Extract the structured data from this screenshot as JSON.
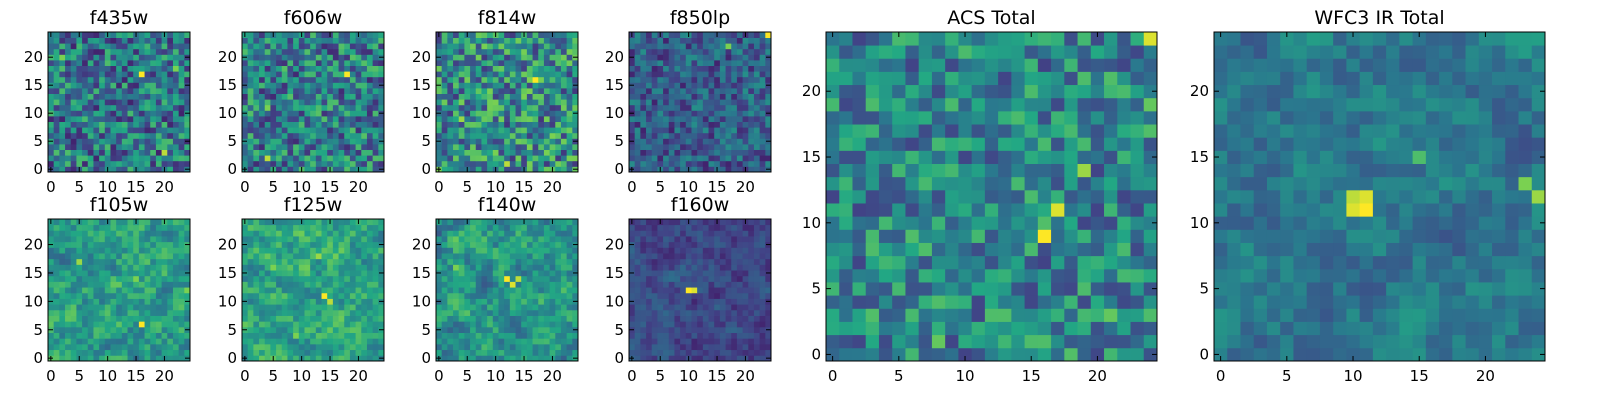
{
  "figure": {
    "colormap": "viridis",
    "colormap_stops": [
      "#440154",
      "#414487",
      "#2a788e",
      "#22a884",
      "#7ad151",
      "#fde725"
    ]
  },
  "chart_data": [
    {
      "type": "heatmap",
      "title": "f435w",
      "xlim": [
        -0.5,
        24.5
      ],
      "ylim": [
        -0.5,
        24.5
      ],
      "xticks": [
        0,
        5,
        10,
        15,
        20
      ],
      "yticks": [
        0,
        5,
        10,
        15,
        20
      ],
      "grid": false,
      "hotspots": [
        {
          "x": 16,
          "y": 17,
          "value": 1.0
        },
        {
          "x": 20,
          "y": 3,
          "value": 0.9
        },
        {
          "x": 22,
          "y": 18,
          "value": 0.8
        },
        {
          "x": 2,
          "y": 20,
          "value": 0.8
        }
      ]
    },
    {
      "type": "heatmap",
      "title": "f606w",
      "xlim": [
        -0.5,
        24.5
      ],
      "ylim": [
        -0.5,
        24.5
      ],
      "xticks": [
        0,
        5,
        10,
        15,
        20
      ],
      "yticks": [
        0,
        5,
        10,
        15,
        20
      ],
      "grid": false,
      "hotspots": [
        {
          "x": 18,
          "y": 17,
          "value": 1.0
        },
        {
          "x": 4,
          "y": 2,
          "value": 0.9
        },
        {
          "x": 4,
          "y": 11,
          "value": 0.8
        }
      ]
    },
    {
      "type": "heatmap",
      "title": "f814w",
      "xlim": [
        -0.5,
        24.5
      ],
      "ylim": [
        -0.5,
        24.5
      ],
      "xticks": [
        0,
        5,
        10,
        15,
        20
      ],
      "yticks": [
        0,
        5,
        10,
        15,
        20
      ],
      "grid": false,
      "hotspots": [
        {
          "x": 17,
          "y": 16,
          "value": 1.0
        },
        {
          "x": 12,
          "y": 1,
          "value": 0.9
        },
        {
          "x": 4,
          "y": 9,
          "value": 0.85
        },
        {
          "x": 15,
          "y": 13,
          "value": 0.8
        }
      ]
    },
    {
      "type": "heatmap",
      "title": "f850lp",
      "xlim": [
        -0.5,
        24.5
      ],
      "ylim": [
        -0.5,
        24.5
      ],
      "xticks": [
        0,
        5,
        10,
        15,
        20
      ],
      "yticks": [
        0,
        5,
        10,
        15,
        20
      ],
      "grid": false,
      "hotspots": [
        {
          "x": 24,
          "y": 24,
          "value": 1.0
        },
        {
          "x": 17,
          "y": 22,
          "value": 0.8
        }
      ]
    },
    {
      "type": "heatmap",
      "title": "f105w",
      "xlim": [
        -0.5,
        24.5
      ],
      "ylim": [
        -0.5,
        24.5
      ],
      "xticks": [
        0,
        5,
        10,
        15,
        20
      ],
      "yticks": [
        0,
        5,
        10,
        15,
        20
      ],
      "grid": false,
      "hotspots": [
        {
          "x": 16,
          "y": 6,
          "value": 1.0
        },
        {
          "x": 5,
          "y": 17,
          "value": 0.85
        },
        {
          "x": 15,
          "y": 14,
          "value": 0.8
        },
        {
          "x": 24,
          "y": 12,
          "value": 0.8
        }
      ]
    },
    {
      "type": "heatmap",
      "title": "f125w",
      "xlim": [
        -0.5,
        24.5
      ],
      "ylim": [
        -0.5,
        24.5
      ],
      "xticks": [
        0,
        5,
        10,
        15,
        20
      ],
      "yticks": [
        0,
        5,
        10,
        15,
        20
      ],
      "grid": false,
      "hotspots": [
        {
          "x": 14,
          "y": 11,
          "value": 1.0
        },
        {
          "x": 15,
          "y": 10,
          "value": 0.9
        },
        {
          "x": 13,
          "y": 18,
          "value": 0.85
        },
        {
          "x": 5,
          "y": 16,
          "value": 0.8
        },
        {
          "x": 9,
          "y": 4,
          "value": 0.8
        }
      ]
    },
    {
      "type": "heatmap",
      "title": "f140w",
      "xlim": [
        -0.5,
        24.5
      ],
      "ylim": [
        -0.5,
        24.5
      ],
      "xticks": [
        0,
        5,
        10,
        15,
        20
      ],
      "yticks": [
        0,
        5,
        10,
        15,
        20
      ],
      "grid": false,
      "hotspots": [
        {
          "x": 12,
          "y": 14,
          "value": 1.0
        },
        {
          "x": 13,
          "y": 13,
          "value": 0.95
        },
        {
          "x": 14,
          "y": 14,
          "value": 0.9
        },
        {
          "x": 3,
          "y": 16,
          "value": 0.8
        }
      ]
    },
    {
      "type": "heatmap",
      "title": "f160w",
      "xlim": [
        -0.5,
        24.5
      ],
      "ylim": [
        -0.5,
        24.5
      ],
      "xticks": [
        0,
        5,
        10,
        15,
        20
      ],
      "yticks": [
        0,
        5,
        10,
        15,
        20
      ],
      "grid": false,
      "hotspots": [
        {
          "x": 10,
          "y": 12,
          "value": 1.0
        },
        {
          "x": 11,
          "y": 12,
          "value": 0.95
        }
      ]
    },
    {
      "type": "heatmap",
      "title": "ACS Total",
      "xlim": [
        -0.5,
        24.5
      ],
      "ylim": [
        -0.5,
        24.5
      ],
      "xticks": [
        0,
        5,
        10,
        15,
        20
      ],
      "yticks": [
        0,
        5,
        10,
        15,
        20
      ],
      "grid": false,
      "hotspots": [
        {
          "x": 16,
          "y": 9,
          "value": 1.0
        },
        {
          "x": 17,
          "y": 11,
          "value": 0.95
        },
        {
          "x": 24,
          "y": 24,
          "value": 0.95
        },
        {
          "x": 19,
          "y": 14,
          "value": 0.85
        },
        {
          "x": 24,
          "y": 19,
          "value": 0.75
        },
        {
          "x": 8,
          "y": 1,
          "value": 0.75
        },
        {
          "x": 21,
          "y": 3,
          "value": 0.75
        }
      ]
    },
    {
      "type": "heatmap",
      "title": "WFC3 IR Total",
      "xlim": [
        -0.5,
        24.5
      ],
      "ylim": [
        -0.5,
        24.5
      ],
      "xticks": [
        0,
        5,
        10,
        15,
        20
      ],
      "yticks": [
        0,
        5,
        10,
        15,
        20
      ],
      "grid": false,
      "hotspots": [
        {
          "x": 11,
          "y": 11,
          "value": 1.0
        },
        {
          "x": 10,
          "y": 11,
          "value": 0.95
        },
        {
          "x": 11,
          "y": 12,
          "value": 0.95
        },
        {
          "x": 10,
          "y": 12,
          "value": 0.9
        },
        {
          "x": 24,
          "y": 12,
          "value": 0.85
        },
        {
          "x": 23,
          "y": 13,
          "value": 0.8
        },
        {
          "x": 15,
          "y": 15,
          "value": 0.7
        }
      ]
    }
  ]
}
